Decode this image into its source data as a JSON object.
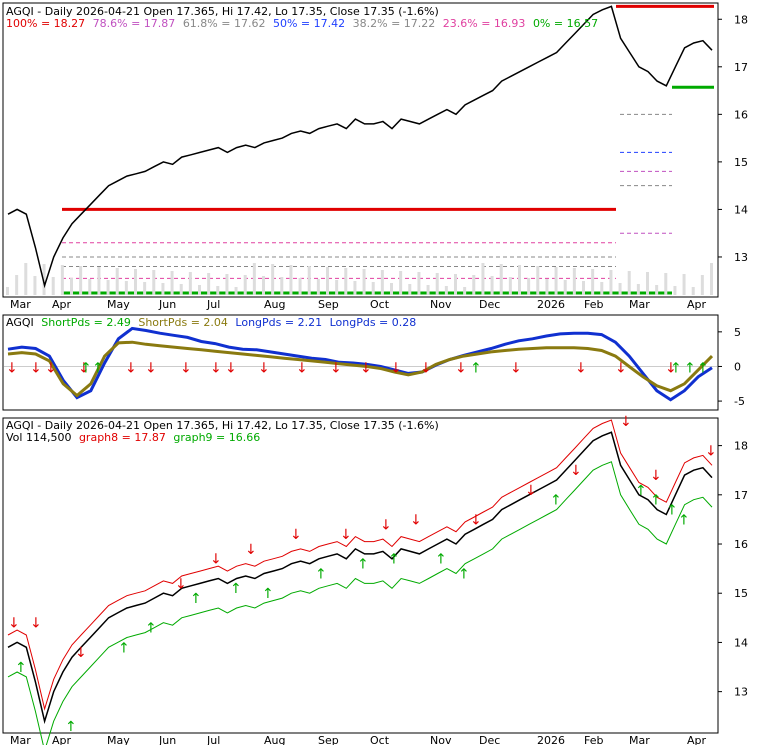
{
  "colors": {
    "red": "#e00000",
    "green": "#00aa00",
    "blue": "#1030d0",
    "olive": "#8a7a10",
    "fib_red": "#cc0000",
    "fib_purple": "#c050c0",
    "fib_gray": "#888888",
    "fib_blue": "#2040ff",
    "fib_pink": "#e040a0",
    "fib_green": "#00aa00"
  },
  "chart_data": [
    {
      "type": "line",
      "panel": "price",
      "header": {
        "title": "AGQI - Daily 2026-04-21 Open 17.365, Hi 17.42, Lo 17.35, Close 17.35 (-1.6%)",
        "fib": [
          {
            "label": "100% = 18.27",
            "color": "#e00000"
          },
          {
            "label": "78.6% = 17.87",
            "color": "#c050c0"
          },
          {
            "label": "61.8% = 17.62",
            "color": "#888888"
          },
          {
            "label": "50% = 17.42",
            "color": "#2040ff"
          },
          {
            "label": "38.2% = 17.22",
            "color": "#888888"
          },
          {
            "label": "23.6% = 16.93",
            "color": "#e040a0"
          },
          {
            "label": "0% = 16.57",
            "color": "#00aa00"
          }
        ]
      },
      "x_labels": [
        "Mar",
        "Apr",
        "May",
        "Jun",
        "Jul",
        "Aug",
        "Sep",
        "Oct",
        "Nov",
        "Dec",
        "2026",
        "Feb",
        "Mar",
        "Apr"
      ],
      "y_ticks": [
        13,
        14,
        15,
        16,
        17,
        18
      ],
      "ylim": [
        12.2,
        18.3
      ],
      "series": [
        {
          "values": [
            13.9,
            14.0,
            13.9,
            13.2,
            12.4,
            13.0,
            13.4,
            13.7,
            13.9,
            14.1,
            14.3,
            14.5,
            14.6,
            14.7,
            14.75,
            14.8,
            14.9,
            15.0,
            14.95,
            15.1,
            15.15,
            15.2,
            15.25,
            15.3,
            15.2,
            15.3,
            15.35,
            15.3,
            15.4,
            15.45,
            15.5,
            15.6,
            15.65,
            15.6,
            15.7,
            15.75,
            15.8,
            15.7,
            15.9,
            15.8,
            15.8,
            15.85,
            15.7,
            15.9,
            15.85,
            15.8,
            15.9,
            16.0,
            16.1,
            16.0,
            16.2,
            16.3,
            16.4,
            16.5,
            16.7,
            16.8,
            16.9,
            17.0,
            17.1,
            17.2,
            17.3,
            17.5,
            17.7,
            17.9,
            18.1,
            18.2,
            18.27,
            17.6,
            17.3,
            17.0,
            16.9,
            16.7,
            16.6,
            17.0,
            17.4,
            17.5,
            17.55,
            17.35
          ]
        }
      ]
    },
    {
      "type": "line",
      "panel": "oscillator",
      "header": {
        "ticker": "AGQI",
        "items": [
          {
            "label": "ShortPds = 2.49",
            "color": "#00aa00"
          },
          {
            "label": "ShortPds = 2.04",
            "color": "#8a7a10"
          },
          {
            "label": "LongPds = 2.21",
            "color": "#1030d0"
          },
          {
            "label": "LongPds = 0.28",
            "color": "#1030d0"
          }
        ]
      },
      "y_ticks": [
        -5,
        0,
        5
      ],
      "ylim": [
        -6,
        7
      ],
      "series": [
        {
          "name": "LongPds",
          "values": [
            2.5,
            2.8,
            2.6,
            1.5,
            -2,
            -4.5,
            -3.5,
            0.5,
            4,
            5.5,
            5.2,
            4.8,
            4.5,
            4.2,
            3.6,
            3.3,
            2.8,
            2.5,
            2.4,
            2.1,
            1.8,
            1.5,
            1.2,
            1,
            0.6,
            0.5,
            0.3,
            0,
            -0.5,
            -1,
            -0.8,
            0.2,
            1,
            1.6,
            2.1,
            2.6,
            3.2,
            3.7,
            4,
            4.4,
            4.7,
            4.8,
            4.8,
            4.6,
            3.5,
            1.5,
            -1,
            -3.5,
            -4.8,
            -3.5,
            -1.5,
            -0.2
          ]
        },
        {
          "name": "ShortPds",
          "values": [
            1.8,
            2.0,
            1.8,
            0.8,
            -2.5,
            -4.2,
            -2.5,
            1.5,
            3.4,
            3.5,
            3.2,
            3.0,
            2.8,
            2.6,
            2.4,
            2.2,
            2,
            1.8,
            1.6,
            1.4,
            1.2,
            1,
            0.8,
            0.6,
            0.4,
            0.2,
            0,
            -0.3,
            -0.8,
            -1.2,
            -0.8,
            0.3,
            1,
            1.5,
            1.8,
            2.1,
            2.3,
            2.5,
            2.6,
            2.7,
            2.7,
            2.7,
            2.6,
            2.3,
            1.5,
            0,
            -1.5,
            -2.8,
            -3.5,
            -2.5,
            -0.5,
            1.5
          ]
        }
      ]
    },
    {
      "type": "line",
      "panel": "price_volume",
      "header": {
        "title": "AGQI - Daily 2026-04-21 Open 17.365, Hi 17.42, Lo 17.35, Close 17.35 (-1.6%)",
        "items": [
          {
            "label": "Vol 114,500",
            "color": "#000000"
          },
          {
            "label": "graph8 = 17.87",
            "color": "#e00000"
          },
          {
            "label": "graph9 = 16.66",
            "color": "#00aa00"
          }
        ]
      },
      "x_labels": [
        "Mar",
        "Apr",
        "May",
        "Jun",
        "Jul",
        "Aug",
        "Sep",
        "Oct",
        "Nov",
        "Dec",
        "2026",
        "Feb",
        "Mar",
        "Apr"
      ],
      "y_ticks": [
        13,
        14,
        15,
        16,
        17,
        18
      ],
      "ylim": [
        12.2,
        18.5
      ]
    }
  ]
}
